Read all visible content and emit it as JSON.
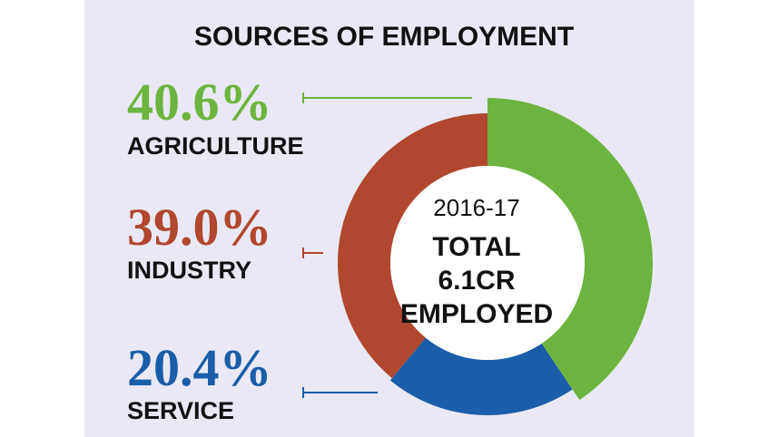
{
  "chart_data": {
    "type": "donut",
    "title": "SOURCES  OF EMPLOYMENT",
    "categories": [
      "AGRICULTURE",
      "SERVICE",
      "INDUSTRY"
    ],
    "values": [
      40.6,
      20.4,
      39.0
    ],
    "value_labels": [
      "40.6%",
      "20.4%",
      "39.0%"
    ],
    "colors": [
      "#6db33f",
      "#1a5da9",
      "#b0472f"
    ],
    "center_label": "2016-17",
    "center_text": [
      "TOTAL",
      "6.1CR",
      "EMPLOYED"
    ]
  }
}
